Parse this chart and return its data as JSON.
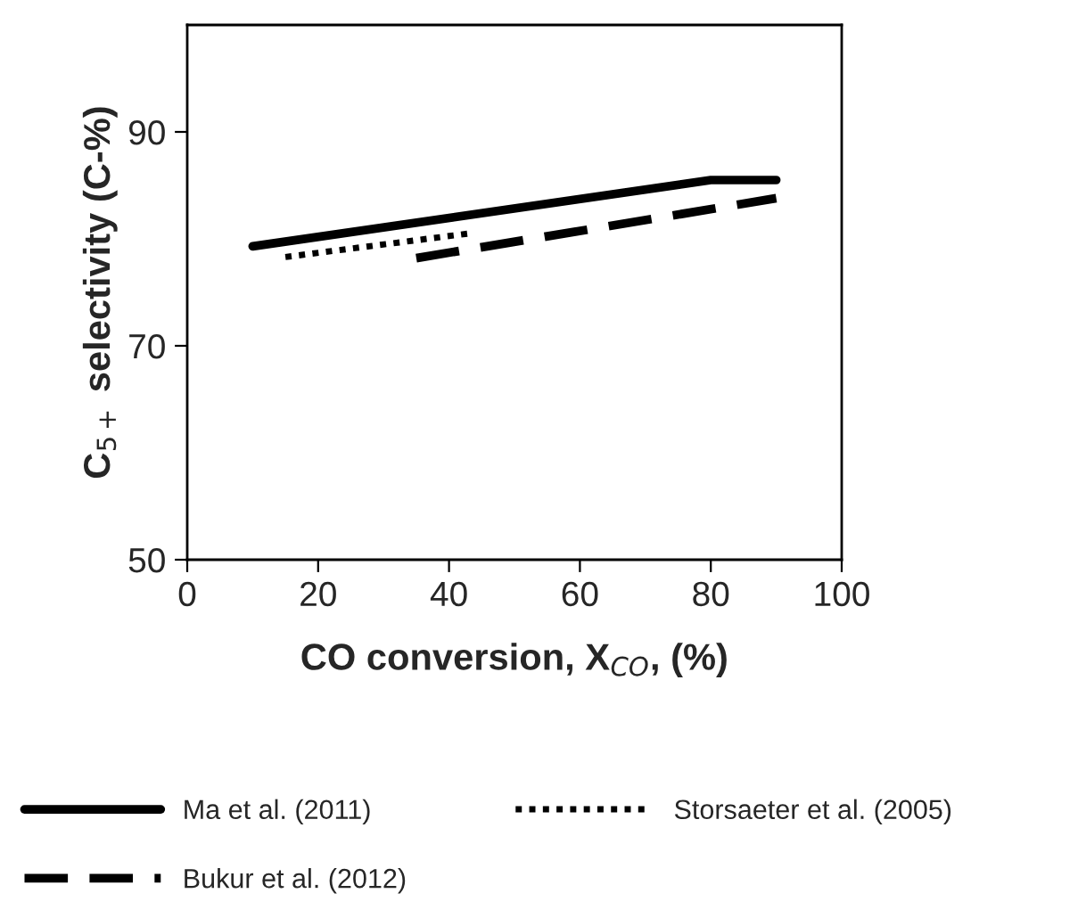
{
  "chart_data": {
    "type": "line",
    "xlabel": "CO conversion, X$_{CO}$, (%)",
    "ylabel": "C$_{5+}$ selectivity (C-%)",
    "xlim": [
      0,
      100
    ],
    "xticks": [
      0,
      20,
      40,
      60,
      80,
      100
    ],
    "ylim": [
      50,
      100
    ],
    "yticks": [
      50,
      70,
      90
    ],
    "grid": false,
    "legend": "bottom",
    "marker": "none",
    "series": [
      {
        "name": "Ma et al. (2011)",
        "color": "#000000",
        "line_style": "solid",
        "x": [
          10,
          80,
          90
        ],
        "values": [
          79.3,
          85.5,
          85.5
        ]
      },
      {
        "name": "Bukur et al. (2012)",
        "color": "#000000",
        "line_style": "dashed",
        "x": [
          35,
          90
        ],
        "values": [
          78.2,
          83.8
        ]
      },
      {
        "name": "Storsaeter et al. (2005)",
        "color": "#000000",
        "line_style": "dotted",
        "x": [
          15,
          43
        ],
        "values": [
          78.3,
          80.5
        ]
      }
    ]
  }
}
